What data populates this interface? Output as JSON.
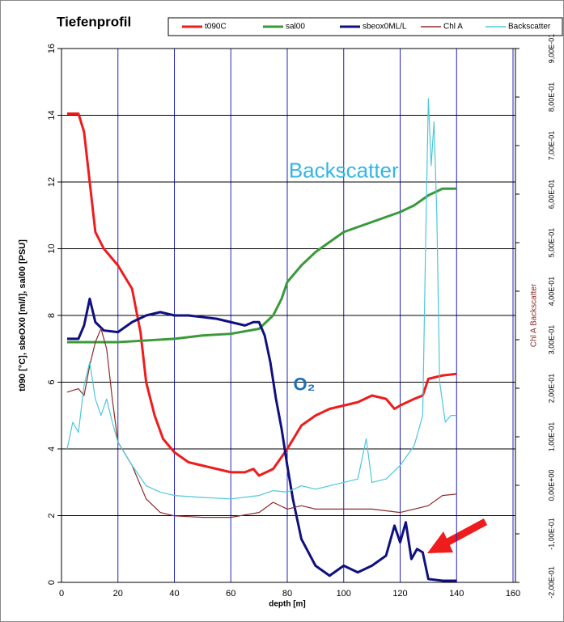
{
  "chart_data": {
    "type": "line",
    "title": "Tiefenprofil",
    "xlabel": "depth [m]",
    "ylabel": "t090 [°C], sbeOX0 [ml/l], sal00 [PSU]",
    "y2label": "Chl A Backscatter",
    "xlim": [
      0,
      160
    ],
    "xticks": [
      0,
      20,
      40,
      60,
      80,
      100,
      120,
      140,
      160
    ],
    "ylim": [
      0,
      16
    ],
    "yticks": [
      0,
      2,
      4,
      6,
      8,
      10,
      12,
      14,
      16
    ],
    "y2lim": [
      -0.2,
      0.9
    ],
    "y2ticks": [
      {
        "value": -0.2,
        "label": "-2,00E-01"
      },
      {
        "value": -0.1,
        "label": "-1,00E-01"
      },
      {
        "value": 0,
        "label": "0,00E+00"
      },
      {
        "value": 0.1,
        "label": "1,00E-01"
      },
      {
        "value": 0.2,
        "label": "2,00E-01"
      },
      {
        "value": 0.3,
        "label": "3,00E-01"
      },
      {
        "value": 0.4,
        "label": "4,00E-01"
      },
      {
        "value": 0.5,
        "label": "5,00E-01"
      },
      {
        "value": 0.6,
        "label": "6,00E-01"
      },
      {
        "value": 0.7,
        "label": "7,00E-01"
      },
      {
        "value": 0.8,
        "label": "8,00E-01"
      },
      {
        "value": 0.9,
        "label": "9,00E-01"
      }
    ],
    "grid": true,
    "vgrid_color": "#2020c0",
    "hgrid_color": "#000000",
    "annotations": [
      {
        "text": "Backscatter",
        "x": 100,
        "y": 12.3,
        "color": "#33b5e5"
      },
      {
        "text": "O₂",
        "x": 86,
        "y": 5.9,
        "color": "#1f6fb5"
      }
    ],
    "series": [
      {
        "name": "t090C",
        "color": "#ee1c1c",
        "x": [
          2,
          6,
          8,
          10,
          12,
          15,
          20,
          25,
          28,
          30,
          33,
          36,
          40,
          45,
          50,
          55,
          60,
          65,
          68,
          70,
          75,
          80,
          85,
          90,
          95,
          100,
          105,
          110,
          115,
          118,
          120,
          125,
          128,
          130,
          135,
          140
        ],
        "values": [
          14.05,
          14.05,
          13.5,
          12,
          10.5,
          10,
          9.5,
          8.8,
          7.5,
          6,
          5,
          4.3,
          3.9,
          3.6,
          3.5,
          3.4,
          3.3,
          3.3,
          3.4,
          3.2,
          3.4,
          4,
          4.7,
          5,
          5.2,
          5.3,
          5.4,
          5.6,
          5.5,
          5.2,
          5.3,
          5.5,
          5.6,
          6.1,
          6.2,
          6.25
        ]
      },
      {
        "name": "sal00",
        "color": "#3a9a3a",
        "x": [
          2,
          10,
          20,
          30,
          40,
          50,
          60,
          70,
          75,
          78,
          80,
          85,
          90,
          95,
          100,
          110,
          120,
          125,
          130,
          135,
          140
        ],
        "values": [
          7.2,
          7.2,
          7.2,
          7.25,
          7.3,
          7.4,
          7.45,
          7.6,
          8,
          8.5,
          9,
          9.5,
          9.9,
          10.2,
          10.5,
          10.8,
          11.1,
          11.3,
          11.6,
          11.8,
          11.8
        ]
      },
      {
        "name": "sbeox0ML/L",
        "color": "#101080",
        "x": [
          2,
          6,
          8,
          10,
          12,
          15,
          20,
          25,
          30,
          35,
          40,
          45,
          50,
          55,
          60,
          65,
          68,
          70,
          72,
          74,
          76,
          78,
          80,
          82,
          85,
          90,
          95,
          100,
          105,
          110,
          115,
          118,
          120,
          122,
          124,
          126,
          128,
          130,
          135,
          140
        ],
        "values": [
          7.3,
          7.3,
          7.7,
          8.5,
          7.8,
          7.55,
          7.5,
          7.8,
          8.0,
          8.1,
          8.0,
          8.0,
          7.95,
          7.9,
          7.8,
          7.7,
          7.8,
          7.8,
          7.4,
          6.6,
          5.5,
          4.6,
          3.5,
          2.5,
          1.3,
          0.5,
          0.2,
          0.5,
          0.3,
          0.5,
          0.8,
          1.7,
          1.2,
          1.8,
          0.7,
          1.0,
          0.9,
          0.1,
          0.05,
          0.05
        ]
      },
      {
        "name": "Chl A",
        "color": "#8b2a2a",
        "axis": "y2",
        "x": [
          2,
          6,
          8,
          10,
          12,
          14,
          16,
          18,
          20,
          25,
          30,
          35,
          40,
          50,
          60,
          70,
          75,
          80,
          85,
          90,
          100,
          110,
          120,
          130,
          135,
          140
        ],
        "values": [
          0.192,
          0.199,
          0.185,
          0.247,
          0.295,
          0.323,
          0.281,
          0.178,
          0.089,
          0.041,
          -0.028,
          -0.056,
          -0.063,
          -0.066,
          -0.066,
          -0.056,
          -0.035,
          -0.049,
          -0.042,
          -0.049,
          -0.049,
          -0.049,
          -0.056,
          -0.042,
          -0.021,
          -0.018
        ]
      },
      {
        "name": "Backscatter",
        "color": "#4cc8d8",
        "axis": "y2",
        "x": [
          2,
          4,
          6,
          8,
          10,
          12,
          14,
          16,
          18,
          20,
          25,
          30,
          35,
          40,
          50,
          60,
          70,
          75,
          80,
          85,
          90,
          100,
          105,
          108,
          110,
          115,
          120,
          125,
          128,
          129,
          130,
          131,
          132,
          133,
          134,
          136,
          138,
          140
        ],
        "values": [
          0.075,
          0.13,
          0.109,
          0.206,
          0.254,
          0.178,
          0.144,
          0.178,
          0.13,
          0.089,
          0.041,
          -0.001,
          -0.014,
          -0.021,
          -0.025,
          -0.028,
          -0.021,
          -0.011,
          -0.014,
          -0.001,
          -0.008,
          0.006,
          0.013,
          0.096,
          0.006,
          0.013,
          0.041,
          0.082,
          0.144,
          0.488,
          0.797,
          0.659,
          0.749,
          0.556,
          0.213,
          0.13,
          0.144,
          0.144
        ]
      }
    ]
  }
}
